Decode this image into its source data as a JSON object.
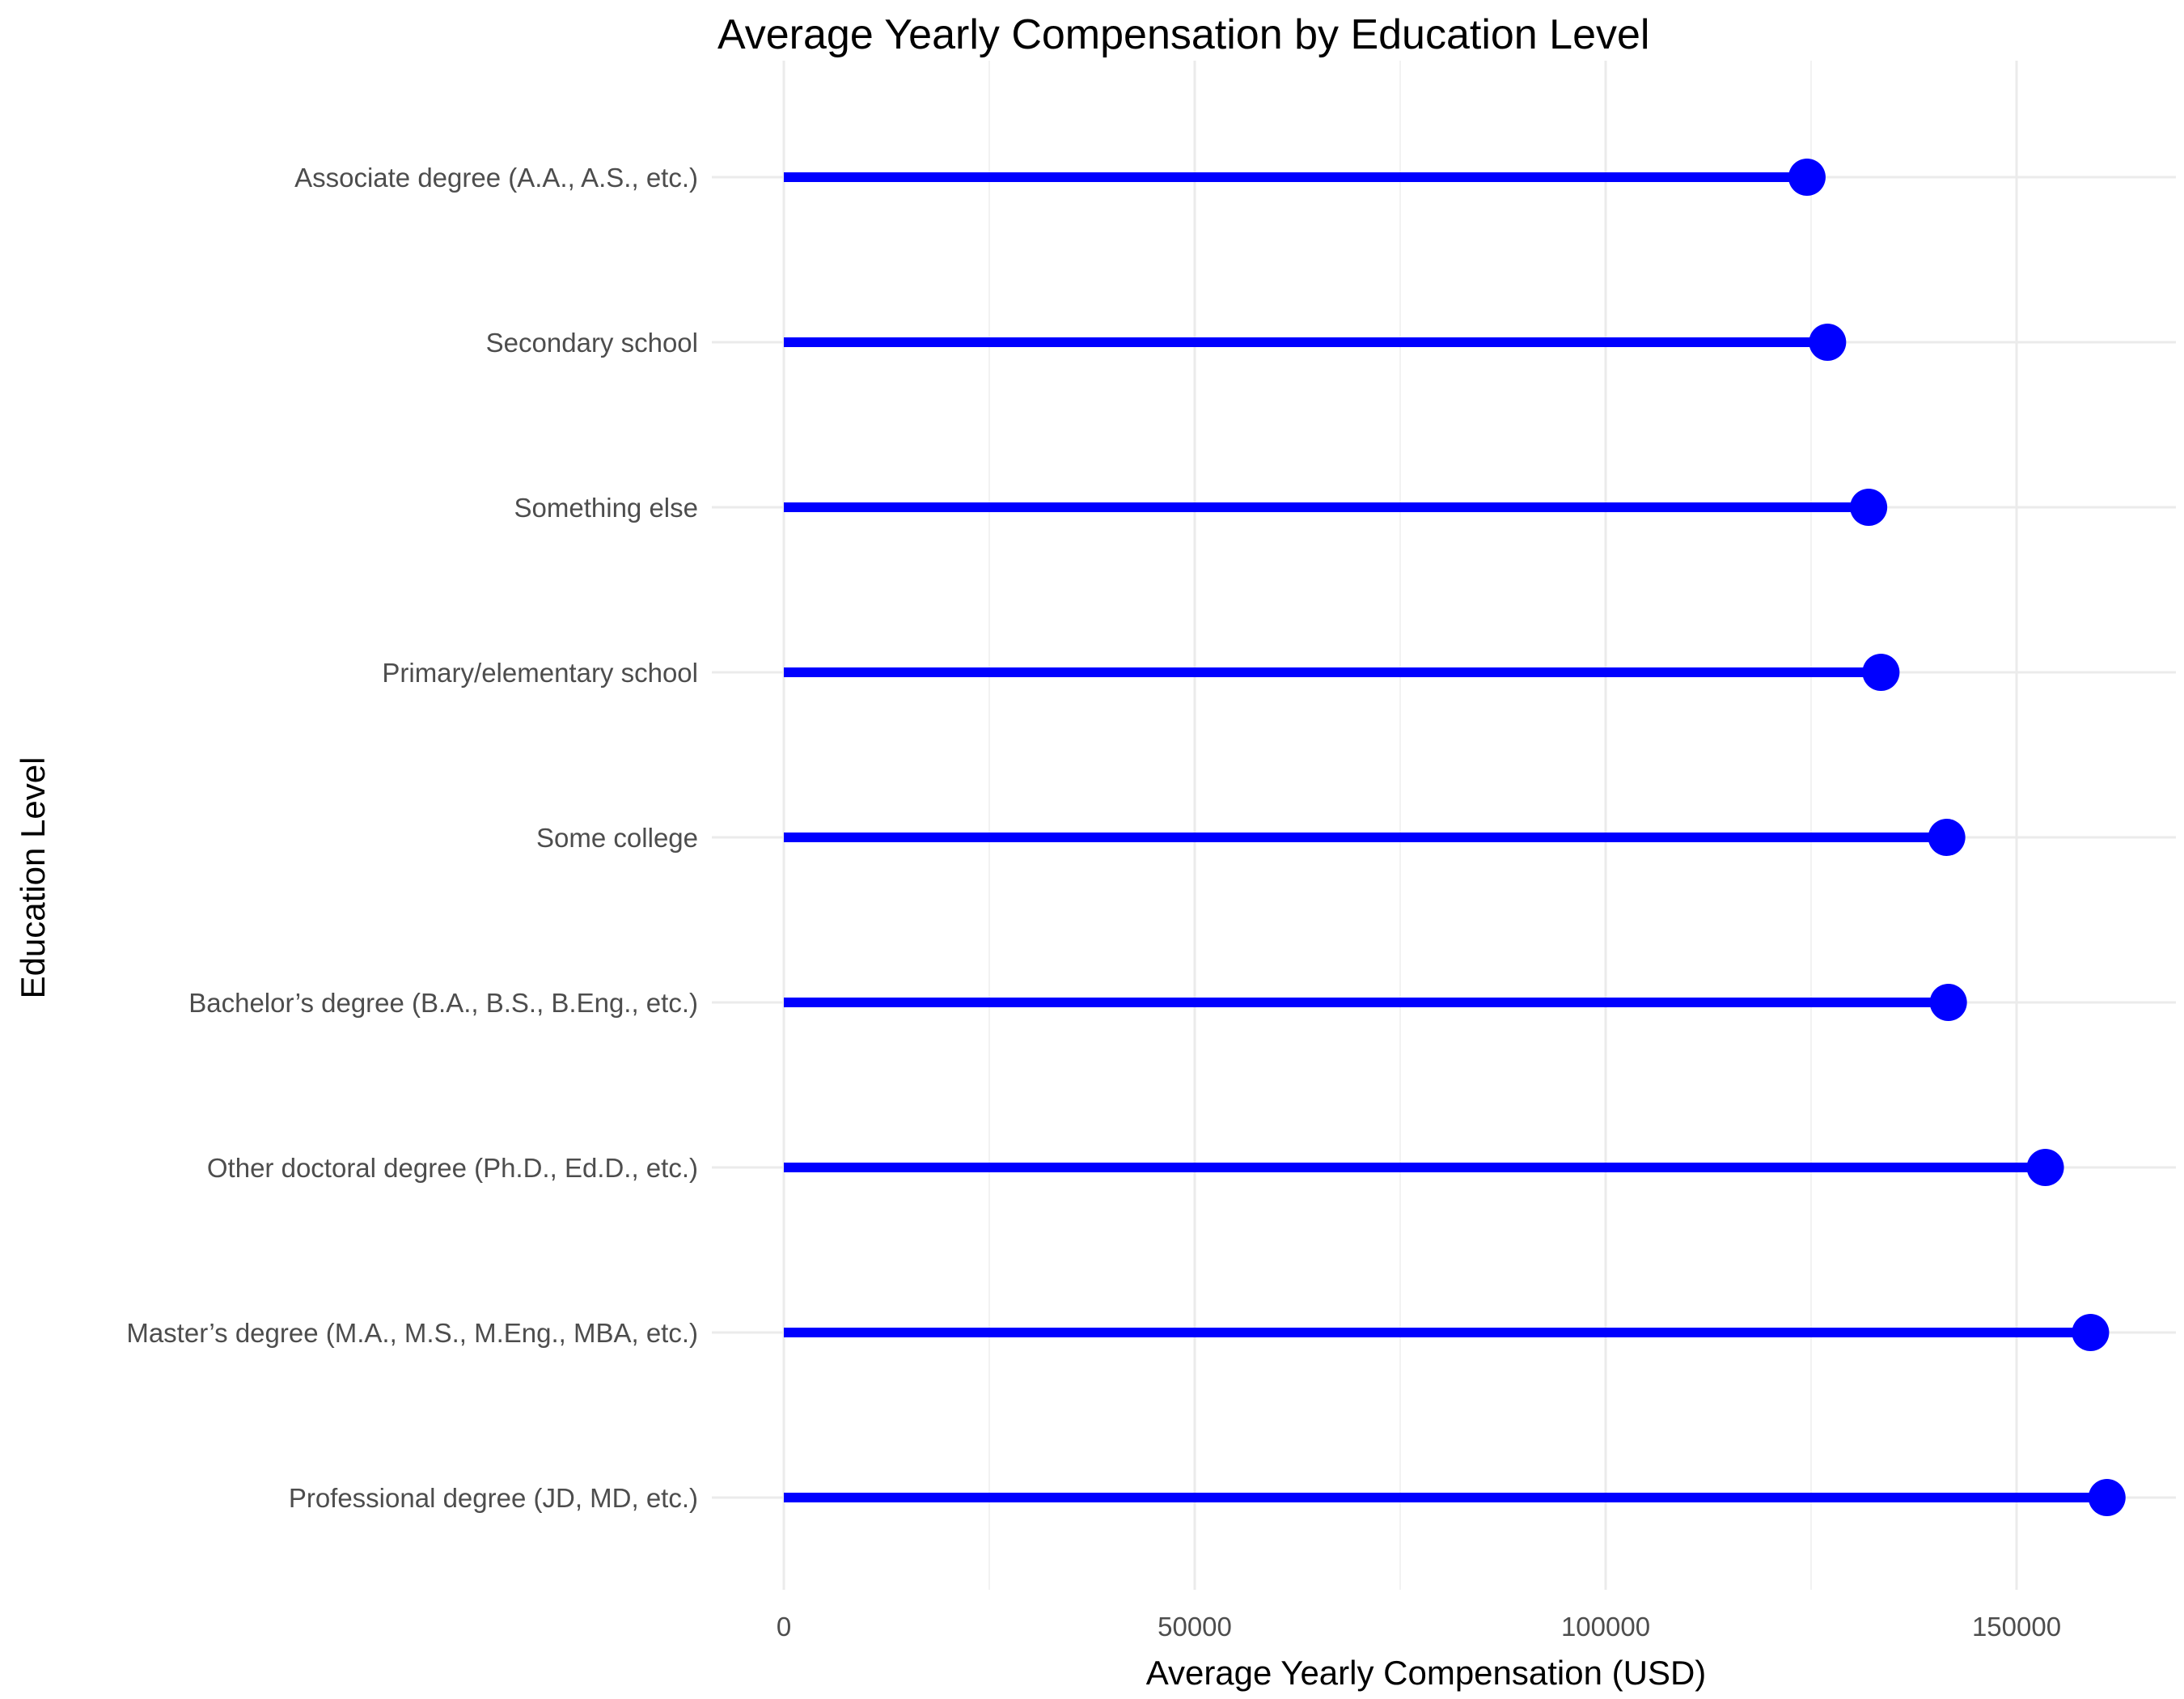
{
  "chart_data": {
    "type": "lollipop",
    "orientation": "horizontal",
    "title": "Average Yearly Compensation by Education Level",
    "xlabel": "Average Yearly Compensation (USD)",
    "ylabel": "Education Level",
    "xlim": [
      0,
      170000
    ],
    "x_ticks": [
      0,
      50000,
      100000,
      150000
    ],
    "x_tick_labels": [
      "0",
      "50000",
      "100000",
      "150000"
    ],
    "grid": true,
    "legend": "none",
    "color": "#0000FF",
    "categories": [
      "Associate degree (A.A., A.S., etc.)",
      "Secondary school",
      "Something else",
      "Primary/elementary school",
      "Some college",
      "Bachelor’s degree (B.A., B.S., B.Eng., etc.)",
      "Other doctoral degree (Ph.D., Ed.D., etc.)",
      "Master’s degree (M.A., M.S., M.Eng., MBA, etc.)",
      "Professional degree (JD, MD, etc.)"
    ],
    "values": [
      124500,
      127000,
      132000,
      133500,
      141500,
      141700,
      153500,
      159000,
      161000
    ]
  }
}
